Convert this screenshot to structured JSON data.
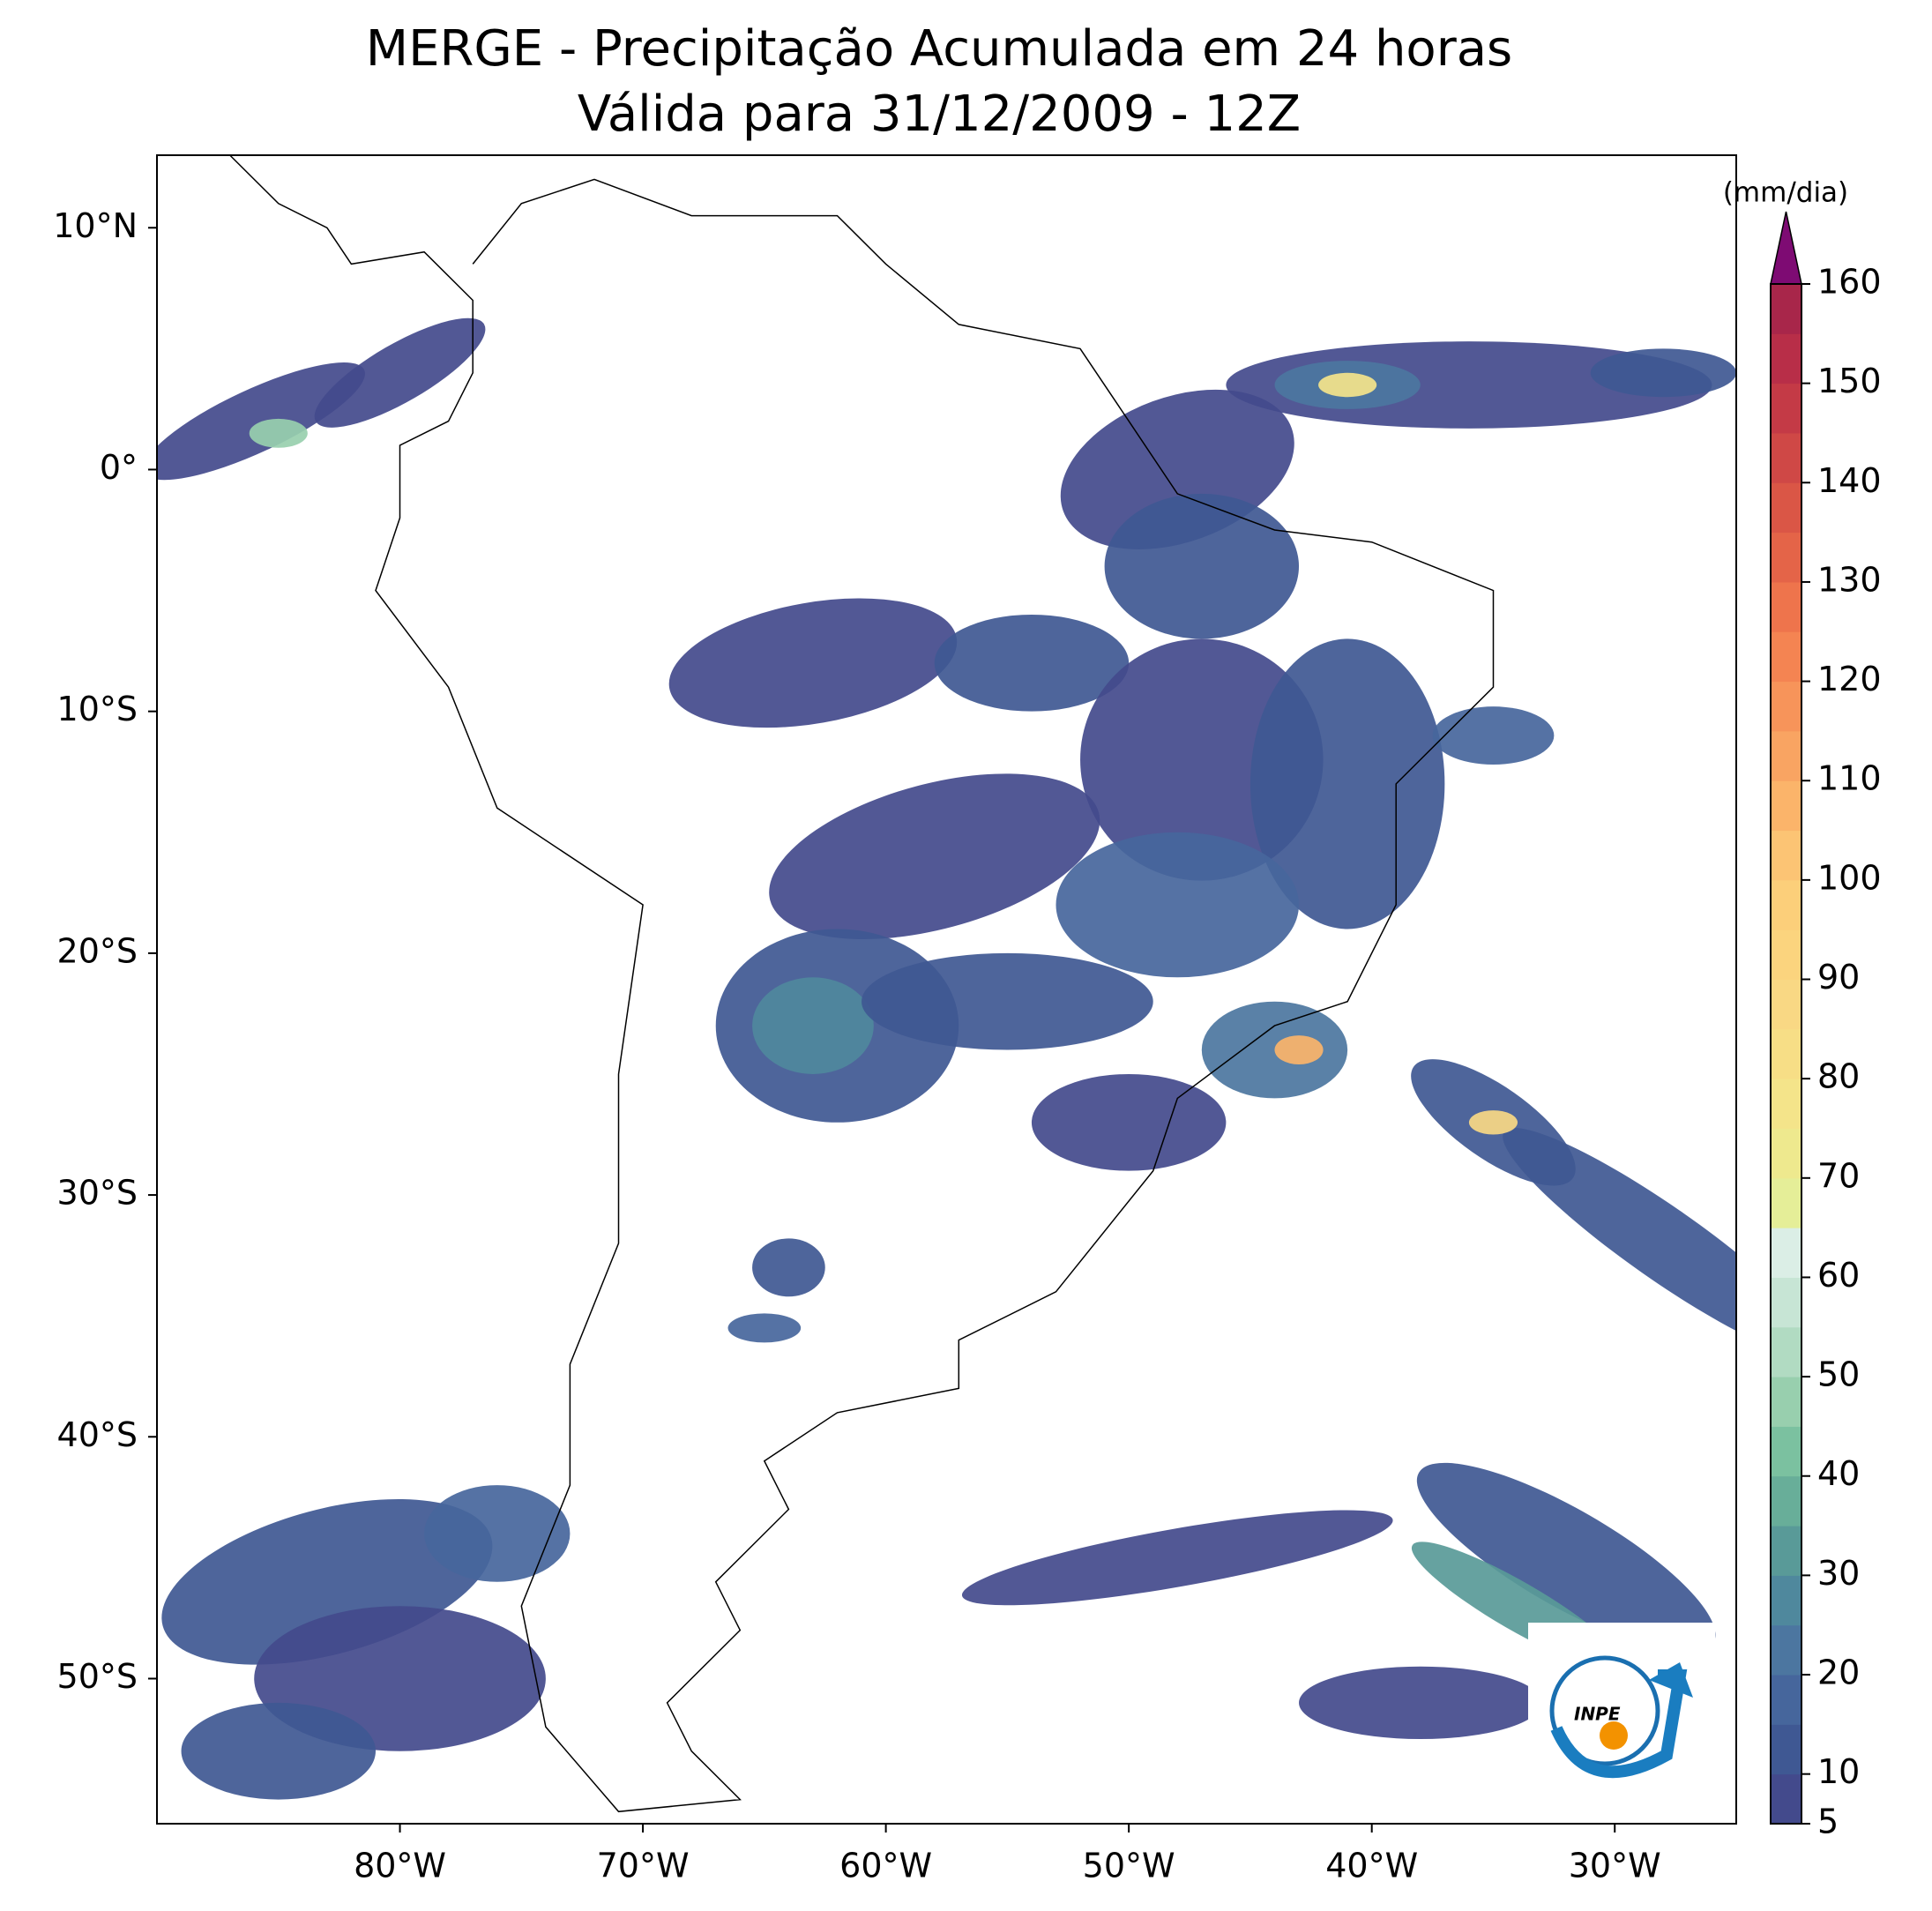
{
  "header": {
    "title": "MERGE - Precipitação Acumulada em 24 horas",
    "subtitle": "Válida para 31/12/2009 - 12Z"
  },
  "map": {
    "xlim": [
      -90,
      -25
    ],
    "ylim": [
      -56,
      13
    ],
    "xticks": [
      {
        "value": -80,
        "label": "80°W"
      },
      {
        "value": -70,
        "label": "70°W"
      },
      {
        "value": -60,
        "label": "60°W"
      },
      {
        "value": -50,
        "label": "50°W"
      },
      {
        "value": -40,
        "label": "40°W"
      },
      {
        "value": -30,
        "label": "30°W"
      }
    ],
    "yticks": [
      {
        "value": 10,
        "label": "10°N"
      },
      {
        "value": 0,
        "label": "0°"
      },
      {
        "value": -10,
        "label": "10°S"
      },
      {
        "value": -20,
        "label": "20°S"
      },
      {
        "value": -30,
        "label": "30°S"
      },
      {
        "value": -40,
        "label": "40°S"
      },
      {
        "value": -50,
        "label": "50°S"
      }
    ]
  },
  "colorbar": {
    "label": "(mm/dia)",
    "levels": [
      5,
      10,
      15,
      20,
      25,
      30,
      35,
      40,
      45,
      50,
      55,
      60,
      65,
      70,
      75,
      80,
      85,
      90,
      95,
      100,
      105,
      110,
      115,
      120,
      125,
      130,
      135,
      140,
      145,
      150,
      155,
      160
    ],
    "colors": [
      "#434a8c",
      "#3f5893",
      "#46669c",
      "#4c76a0",
      "#4f889d",
      "#599a98",
      "#68ae99",
      "#7bc1a0",
      "#98cfae",
      "#b1dbc2",
      "#c7e5d5",
      "#dbeee6",
      "#e5ee98",
      "#eee98e",
      "#f4e48a",
      "#f7de86",
      "#f9d884",
      "#fbd47e",
      "#fccf7a",
      "#fcc474",
      "#fbb46a",
      "#f9a462",
      "#f7945a",
      "#f48452",
      "#ee744c",
      "#e46448",
      "#da5646",
      "#cf4846",
      "#c43a46",
      "#b82e48",
      "#a8264a"
    ],
    "extend_color": "#7e0b73",
    "ticks": [
      5,
      10,
      20,
      30,
      40,
      50,
      60,
      70,
      80,
      90,
      100,
      110,
      120,
      130,
      140,
      150,
      160
    ]
  },
  "logo": {
    "text": "INPE"
  }
}
